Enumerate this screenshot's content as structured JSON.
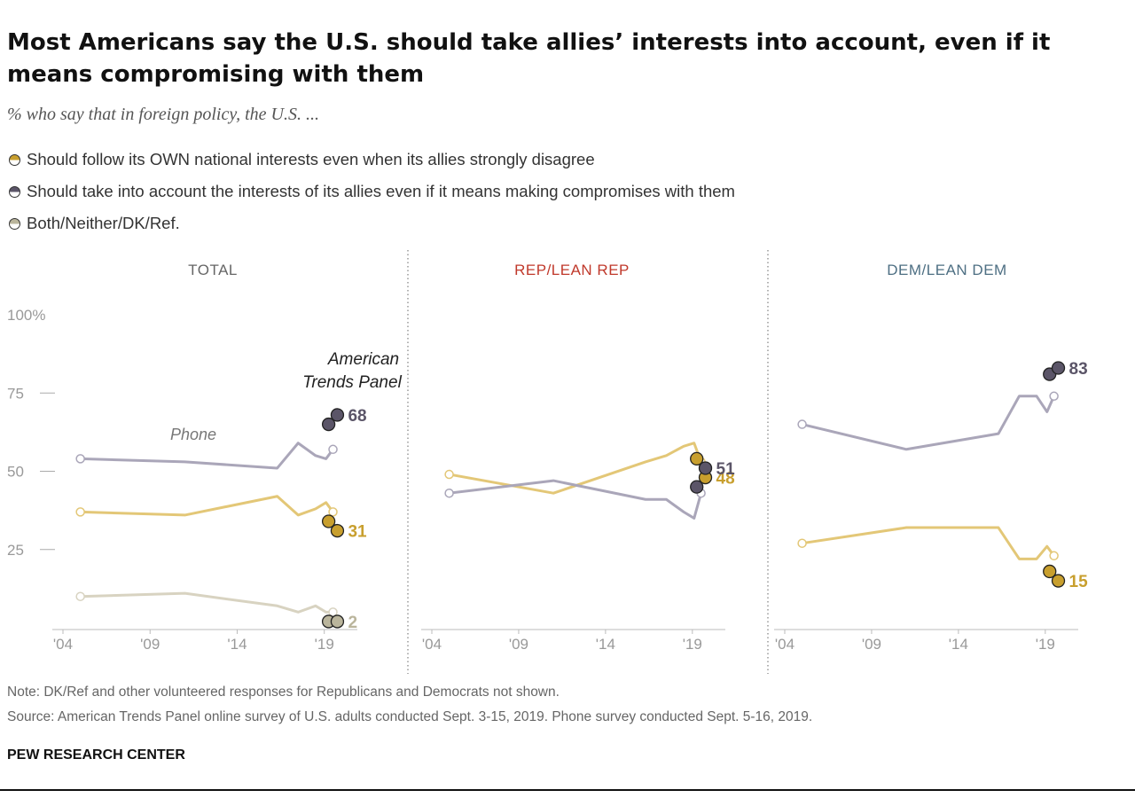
{
  "title": "Most Americans say the U.S. should take allies’ interests into account, even if it means compromising with them",
  "subtitle": "% who say that in foreign policy, the U.S. ...",
  "legend": [
    {
      "label": "Should follow its OWN national interests even when its allies strongly disagree",
      "color": "#c89f2e"
    },
    {
      "label": "Should take into account the interests of its allies even if it means making compromises with them",
      "color": "#5b5568"
    },
    {
      "label": "Both/Neither/DK/Ref.",
      "color": "#bab59c"
    }
  ],
  "colors": {
    "own_line": "#e3c777",
    "own_dot": "#c89f2e",
    "own_text": "#c89f2e",
    "allies_line": "#aaa6b9",
    "allies_dot": "#5b5568",
    "allies_text": "#5b5568",
    "both_line": "#d8d3c1",
    "both_dot": "#bab59c",
    "both_text": "#bab59c",
    "rep_title": "#c0392b",
    "dem_title": "#4e6f83",
    "total_title": "#666666"
  },
  "annotations": {
    "phone": "Phone",
    "atp_line1": "American",
    "atp_line2": "Trends Panel"
  },
  "chart_data": [
    {
      "type": "line",
      "title": "TOTAL",
      "x_ticks": [
        "'04",
        "'09",
        "'14",
        "'19"
      ],
      "y_ticks": [
        "100%",
        "75",
        "50",
        "25"
      ],
      "ylim": [
        0,
        100
      ],
      "xlim": [
        2004,
        2021
      ],
      "series": [
        {
          "name": "Should follow its OWN national interests even when its allies strongly disagree",
          "key": "own",
          "phone": [
            [
              2005,
              37
            ],
            [
              2011,
              36
            ],
            [
              2016.3,
              42
            ],
            [
              2017.5,
              36
            ],
            [
              2018.5,
              38
            ],
            [
              2019.1,
              40
            ],
            [
              2019.5,
              37
            ]
          ],
          "atp": [
            [
              2019.25,
              34
            ],
            [
              2019.75,
              31
            ]
          ],
          "label": "31"
        },
        {
          "name": "Should take into account the interests of its allies even if it means making compromises with them",
          "key": "allies",
          "phone": [
            [
              2005,
              54
            ],
            [
              2011,
              53
            ],
            [
              2016.3,
              51
            ],
            [
              2017.5,
              59
            ],
            [
              2018.5,
              55
            ],
            [
              2019.1,
              54
            ],
            [
              2019.5,
              57
            ]
          ],
          "atp": [
            [
              2019.25,
              65
            ],
            [
              2019.75,
              68
            ]
          ],
          "label": "68"
        },
        {
          "name": "Both/Neither/DK/Ref.",
          "key": "both",
          "phone": [
            [
              2005,
              10
            ],
            [
              2011,
              11
            ],
            [
              2016.3,
              7
            ],
            [
              2017.5,
              5
            ],
            [
              2018.5,
              7
            ],
            [
              2019.1,
              5
            ],
            [
              2019.5,
              5
            ]
          ],
          "atp": [
            [
              2019.25,
              2
            ],
            [
              2019.75,
              2
            ]
          ],
          "label": "2"
        }
      ]
    },
    {
      "type": "line",
      "title": "REP/LEAN REP",
      "x_ticks": [
        "'04",
        "'09",
        "'14",
        "'19"
      ],
      "ylim": [
        0,
        100
      ],
      "xlim": [
        2004,
        2021
      ],
      "series": [
        {
          "name": "Should follow its OWN national interests even when its allies strongly disagree",
          "key": "own",
          "phone": [
            [
              2005,
              49
            ],
            [
              2011,
              43
            ],
            [
              2016.3,
              53
            ],
            [
              2017.5,
              55
            ],
            [
              2018.5,
              58
            ],
            [
              2019.1,
              59
            ],
            [
              2019.5,
              53
            ]
          ],
          "atp": [
            [
              2019.25,
              54
            ],
            [
              2019.75,
              48
            ]
          ],
          "label": "48"
        },
        {
          "name": "Should take into account the interests of its allies even if it means making compromises with them",
          "key": "allies",
          "phone": [
            [
              2005,
              43
            ],
            [
              2011,
              47
            ],
            [
              2016.3,
              41
            ],
            [
              2017.5,
              41
            ],
            [
              2018.5,
              37
            ],
            [
              2019.1,
              35
            ],
            [
              2019.5,
              43
            ]
          ],
          "atp": [
            [
              2019.25,
              45
            ],
            [
              2019.75,
              51
            ]
          ],
          "label": "51"
        }
      ]
    },
    {
      "type": "line",
      "title": "DEM/LEAN DEM",
      "x_ticks": [
        "'04",
        "'09",
        "'14",
        "'19"
      ],
      "ylim": [
        0,
        100
      ],
      "xlim": [
        2004,
        2021
      ],
      "series": [
        {
          "name": "Should follow its OWN national interests even when its allies strongly disagree",
          "key": "own",
          "phone": [
            [
              2005,
              27
            ],
            [
              2011,
              32
            ],
            [
              2016.3,
              32
            ],
            [
              2017.5,
              22
            ],
            [
              2018.5,
              22
            ],
            [
              2019.1,
              26
            ],
            [
              2019.5,
              23
            ]
          ],
          "atp": [
            [
              2019.25,
              18
            ],
            [
              2019.75,
              15
            ]
          ],
          "label": "15"
        },
        {
          "name": "Should take into account the interests of its allies even if it means making compromises with them",
          "key": "allies",
          "phone": [
            [
              2005,
              65
            ],
            [
              2011,
              57
            ],
            [
              2016.3,
              62
            ],
            [
              2017.5,
              74
            ],
            [
              2018.5,
              74
            ],
            [
              2019.1,
              69
            ],
            [
              2019.5,
              74
            ]
          ],
          "atp": [
            [
              2019.25,
              81
            ],
            [
              2019.75,
              83
            ]
          ],
          "label": "83"
        }
      ]
    }
  ],
  "notes": {
    "note": "Note: DK/Ref and other volunteered responses for Republicans and Democrats not shown.",
    "source": "Source: American Trends Panel online survey of U.S. adults conducted Sept. 3-15, 2019. Phone survey conducted Sept. 5-16, 2019."
  },
  "brand": "PEW RESEARCH CENTER"
}
